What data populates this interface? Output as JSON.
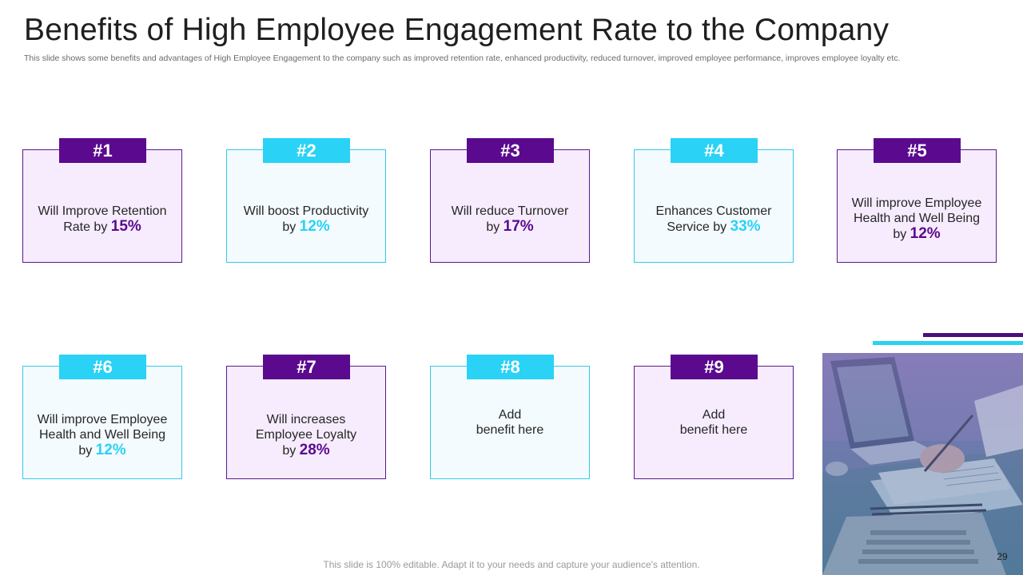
{
  "slide": {
    "title": "Benefits of High Employee Engagement Rate to the Company",
    "subtitle": "This slide shows some benefits and advantages of High Employee Engagement to the company such as improved retention rate, enhanced productivity, reduced turnover, improved employee performance, improves employee loyalty etc.",
    "footer": "This slide is 100% editable. Adapt it to your needs and capture your audience's attention.",
    "page_number": "29"
  },
  "cards": [
    {
      "badge": "#1",
      "line1": "Will Improve Retention",
      "line2": "",
      "prefix": "Rate by ",
      "value": "15%",
      "theme": "purple"
    },
    {
      "badge": "#2",
      "line1": "Will boost Productivity",
      "line2": "",
      "prefix": "by ",
      "value": "12%",
      "theme": "cyan"
    },
    {
      "badge": "#3",
      "line1": "Will reduce Turnover",
      "line2": "",
      "prefix": "by ",
      "value": "17%",
      "theme": "purple"
    },
    {
      "badge": "#4",
      "line1": "Enhances Customer",
      "line2": "",
      "prefix": "Service by ",
      "value": "33%",
      "theme": "cyan"
    },
    {
      "badge": "#5",
      "line1": "Will improve Employee",
      "line2": "Health and Well Being",
      "prefix": "by ",
      "value": "12%",
      "theme": "purple"
    },
    {
      "badge": "#6",
      "line1": "Will improve Employee",
      "line2": "Health and Well Being",
      "prefix": "by ",
      "value": "12%",
      "theme": "cyan"
    },
    {
      "badge": "#7",
      "line1": "Will increases",
      "line2": "Employee Loyalty",
      "prefix": "by ",
      "value": "28%",
      "theme": "purple"
    },
    {
      "badge": "#8",
      "line1": "Add",
      "line2": "benefit here",
      "prefix": "",
      "value": "",
      "theme": "cyan"
    },
    {
      "badge": "#9",
      "line1": "Add",
      "line2": "benefit here",
      "prefix": "",
      "value": "",
      "theme": "purple"
    }
  ],
  "colors": {
    "purple": "#5b0a8f",
    "cyan": "#2ad2f5",
    "purple_bg": "#f6ecfd",
    "cyan_bg": "#f3fbfe"
  }
}
